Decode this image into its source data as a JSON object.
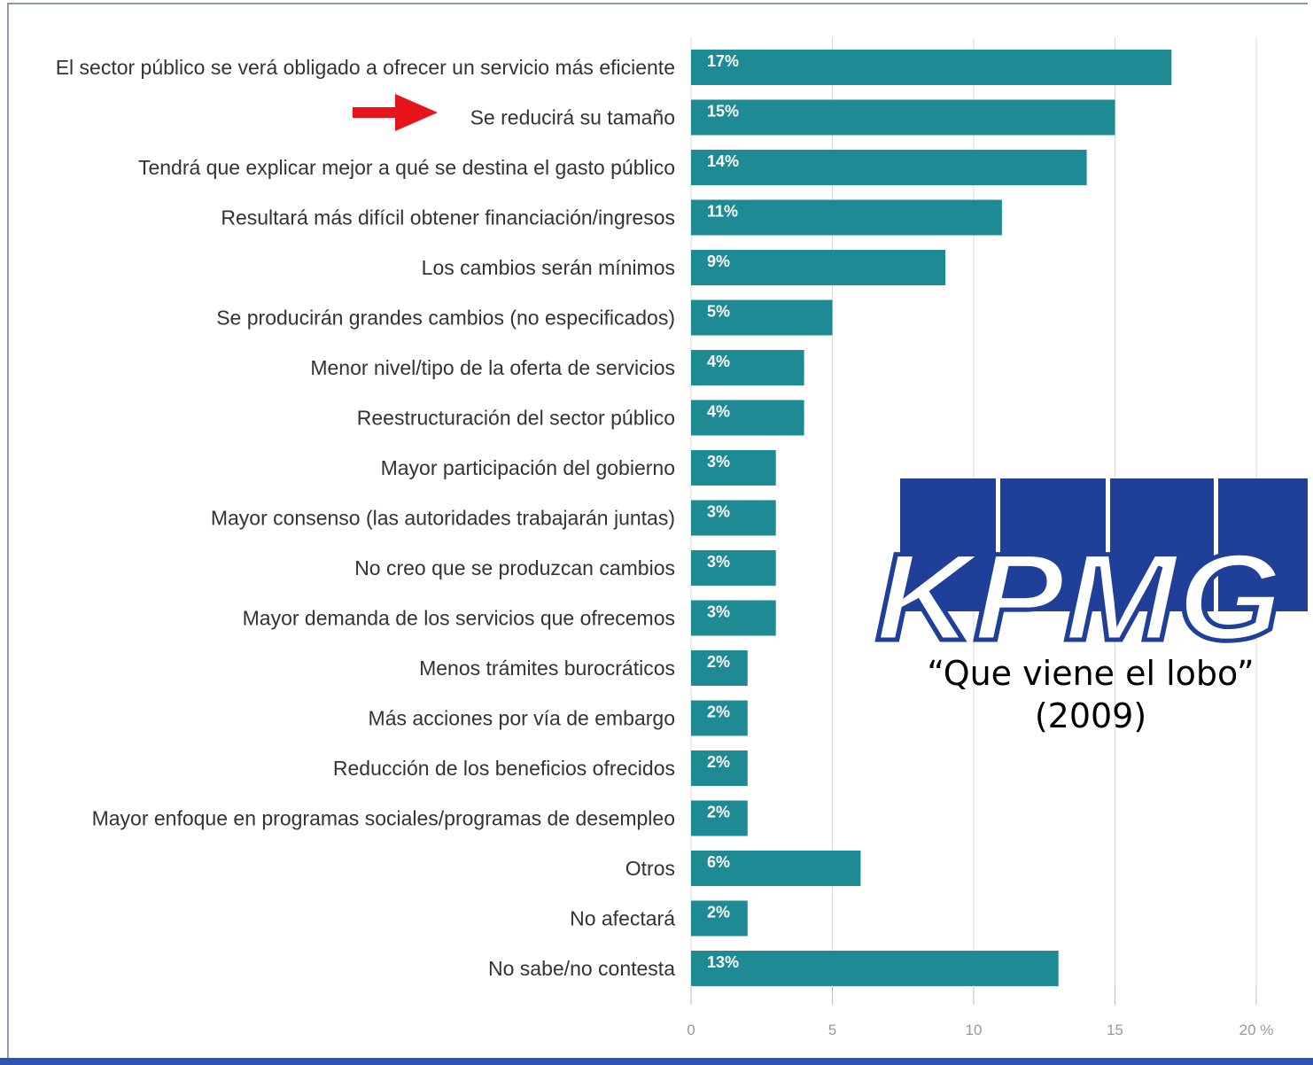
{
  "colors": {
    "bar": "#1e8a94",
    "kpmg_blue": "#1f3f99",
    "arrow": "#e8141b",
    "grid": "#d9d9d9"
  },
  "logo": {
    "text": "KPMG",
    "caption_line1": "“Que viene el lobo”",
    "caption_line2": "(2009)"
  },
  "highlight": {
    "icon": "red-arrow-icon",
    "points_to": "Se reducirá su tamaño"
  },
  "chart_data": {
    "type": "bar",
    "orientation": "horizontal",
    "categories": [
      "El sector público se verá obligado a ofrecer un servicio más eficiente",
      "Se reducirá su tamaño",
      "Tendrá que explicar mejor a qué se destina el gasto público",
      "Resultará más difícil obtener financiación/ingresos",
      "Los cambios serán mínimos",
      "Se producirán grandes cambios  (no especificados)",
      "Menor nivel/tipo de la oferta de servicios",
      "Reestructuración del sector público",
      "Mayor participación del gobierno",
      "Mayor consenso (las autoridades trabajarán juntas)",
      "No creo que se produzcan cambios",
      "Mayor demanda de los servicios que ofrecemos",
      "Menos trámites burocráticos",
      "Más acciones por vía de embargo",
      "Reducción de los beneficios ofrecidos",
      "Mayor enfoque en programas sociales/programas de desempleo",
      "Otros",
      "No afectará",
      "No sabe/no contesta"
    ],
    "values": [
      17,
      15,
      14,
      11,
      9,
      5,
      4,
      4,
      3,
      3,
      3,
      3,
      2,
      2,
      2,
      2,
      6,
      2,
      13
    ],
    "value_labels": [
      "17%",
      "15%",
      "14%",
      "11%",
      "9%",
      "5%",
      "4%",
      "4%",
      "3%",
      "3%",
      "3%",
      "3%",
      "2%",
      "2%",
      "2%",
      "2%",
      "6%",
      "2%",
      "13%"
    ],
    "xlim": [
      0,
      20
    ],
    "xticks": [
      0,
      5,
      10,
      15,
      20
    ],
    "xtick_labels": [
      "0",
      "5",
      "10",
      "15",
      "20 %"
    ],
    "grid": true
  }
}
